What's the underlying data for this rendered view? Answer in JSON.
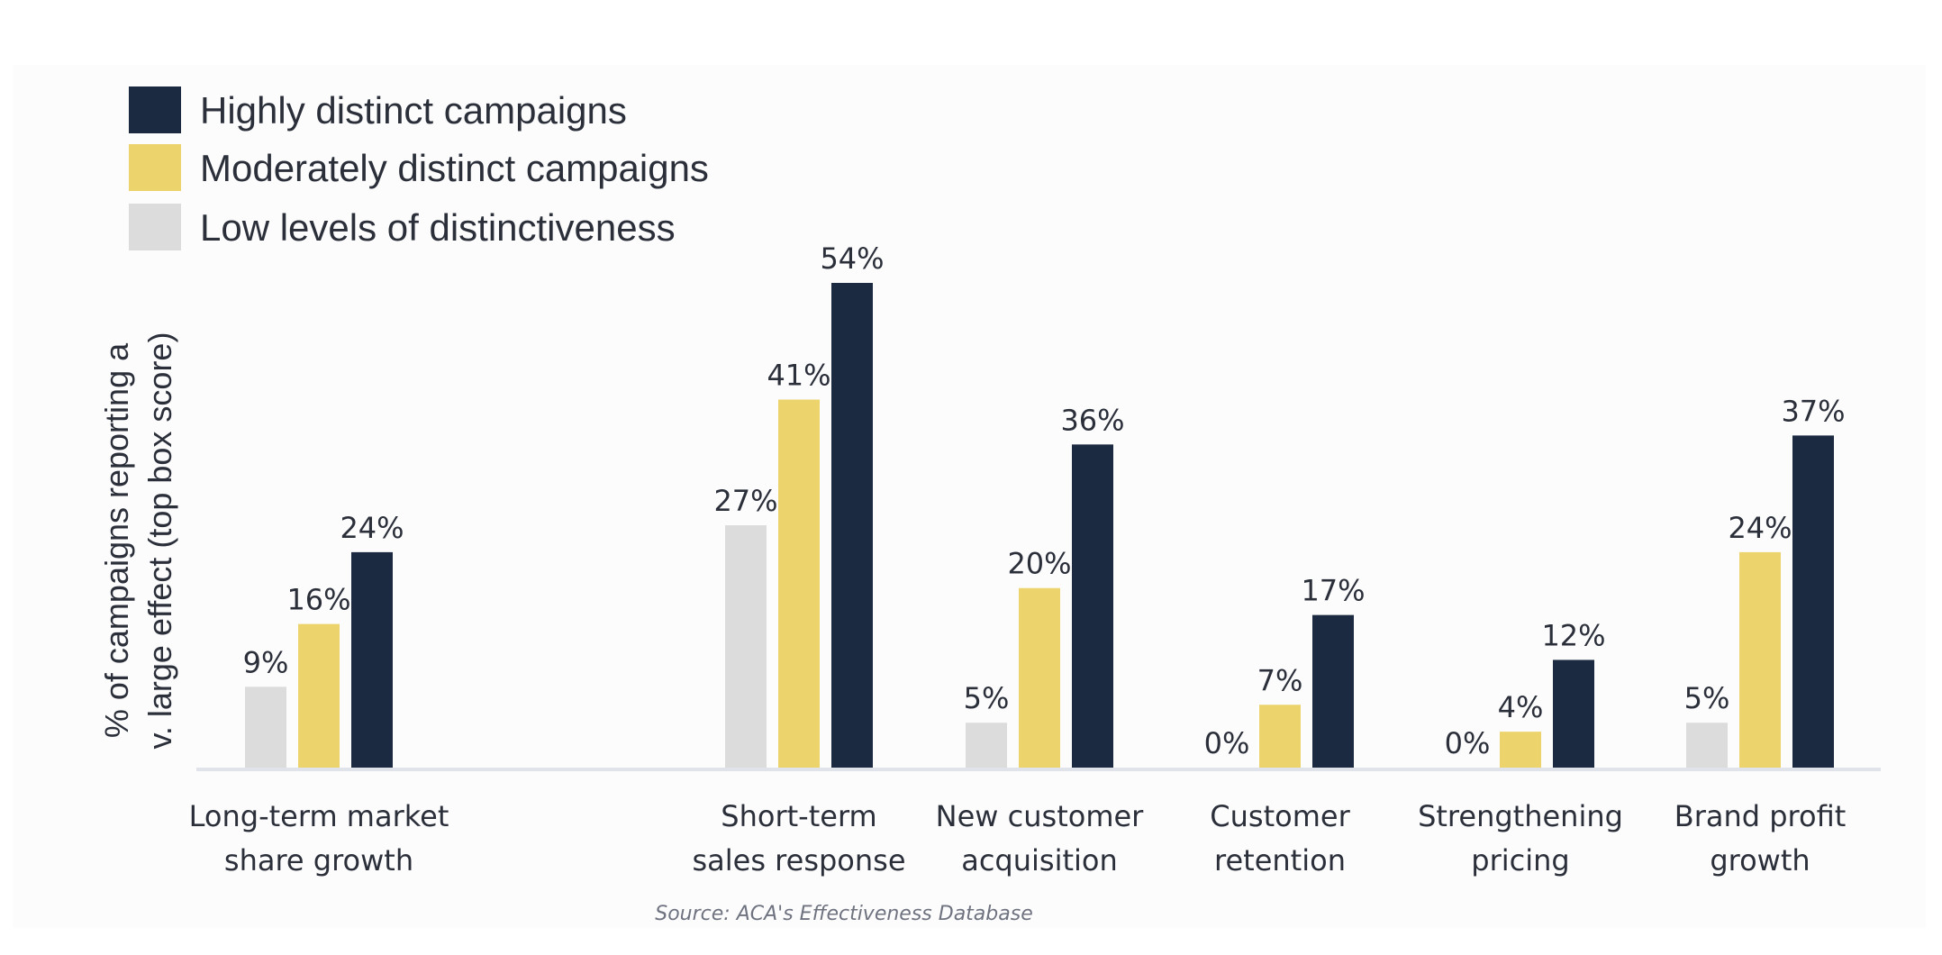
{
  "chart_data": {
    "type": "bar",
    "ylabel": [
      "% of campaigns reporting a",
      "v. large effect (top box score)"
    ],
    "xlabel": "",
    "ylim": [
      0,
      60
    ],
    "legend_position": "top-left",
    "grid": false,
    "categories": [
      [
        "Long-term market",
        "share growth"
      ],
      [
        "Short-term",
        "sales response"
      ],
      [
        "New customer",
        "acquisition"
      ],
      [
        "Customer",
        "retention"
      ],
      [
        "Strengthening",
        "pricing"
      ],
      [
        "Brand profit",
        "growth"
      ]
    ],
    "series": [
      {
        "name": "Low levels of distinctiveness",
        "color": "#dcdcdc",
        "values": [
          9,
          27,
          5,
          0,
          0,
          5
        ],
        "labels": [
          "9%",
          "27%",
          "5%",
          "0%",
          "0%",
          "5%"
        ]
      },
      {
        "name": "Moderately distinct campaigns",
        "color": "#edd36b",
        "values": [
          16,
          41,
          20,
          7,
          4,
          24
        ],
        "labels": [
          "16%",
          "41%",
          "20%",
          "7%",
          "4%",
          "24%"
        ]
      },
      {
        "name": "Highly distinct campaigns",
        "color": "#1b2a40",
        "values": [
          24,
          54,
          36,
          17,
          12,
          37
        ],
        "labels": [
          "24%",
          "54%",
          "36%",
          "17%",
          "12%",
          "37%"
        ]
      }
    ],
    "legend": [
      {
        "name": "Highly distinct campaigns",
        "color": "#1b2a40"
      },
      {
        "name": "Moderately distinct campaigns",
        "color": "#edd36b"
      },
      {
        "name": "Low levels of distinctiveness",
        "color": "#dcdcdc"
      }
    ],
    "source": "Source: ACA's Effectiveness Database"
  }
}
